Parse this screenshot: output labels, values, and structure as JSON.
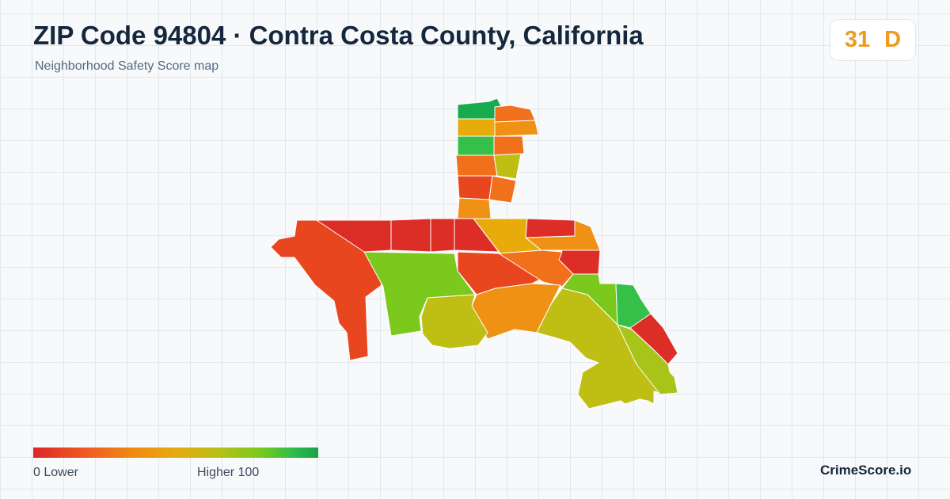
{
  "header": {
    "title": "ZIP Code 94804 · Contra Costa County, California",
    "subtitle": "Neighborhood Safety Score map"
  },
  "score": {
    "value": "31",
    "grade": "D",
    "color": "#ee9a1c"
  },
  "legend": {
    "min_label": "0  Lower",
    "max_label": "Higher  100",
    "low_color": "#dc2626",
    "high_color": "#16a34a"
  },
  "brand": "CrimeScore.io",
  "map": {
    "background": "#f7f9fa",
    "grid_color": "#e3e8ec",
    "region_count": 30,
    "palette": {
      "red": "#dc2e27",
      "red_orange": "#e8461f",
      "orange": "#f0701c",
      "amber": "#ef9115",
      "gold": "#e8ab0c",
      "olive": "#bfbe15",
      "yellow_green": "#a8c418",
      "lime": "#7cc91e",
      "green": "#35c04a",
      "deep_green": "#18ab4e"
    }
  }
}
